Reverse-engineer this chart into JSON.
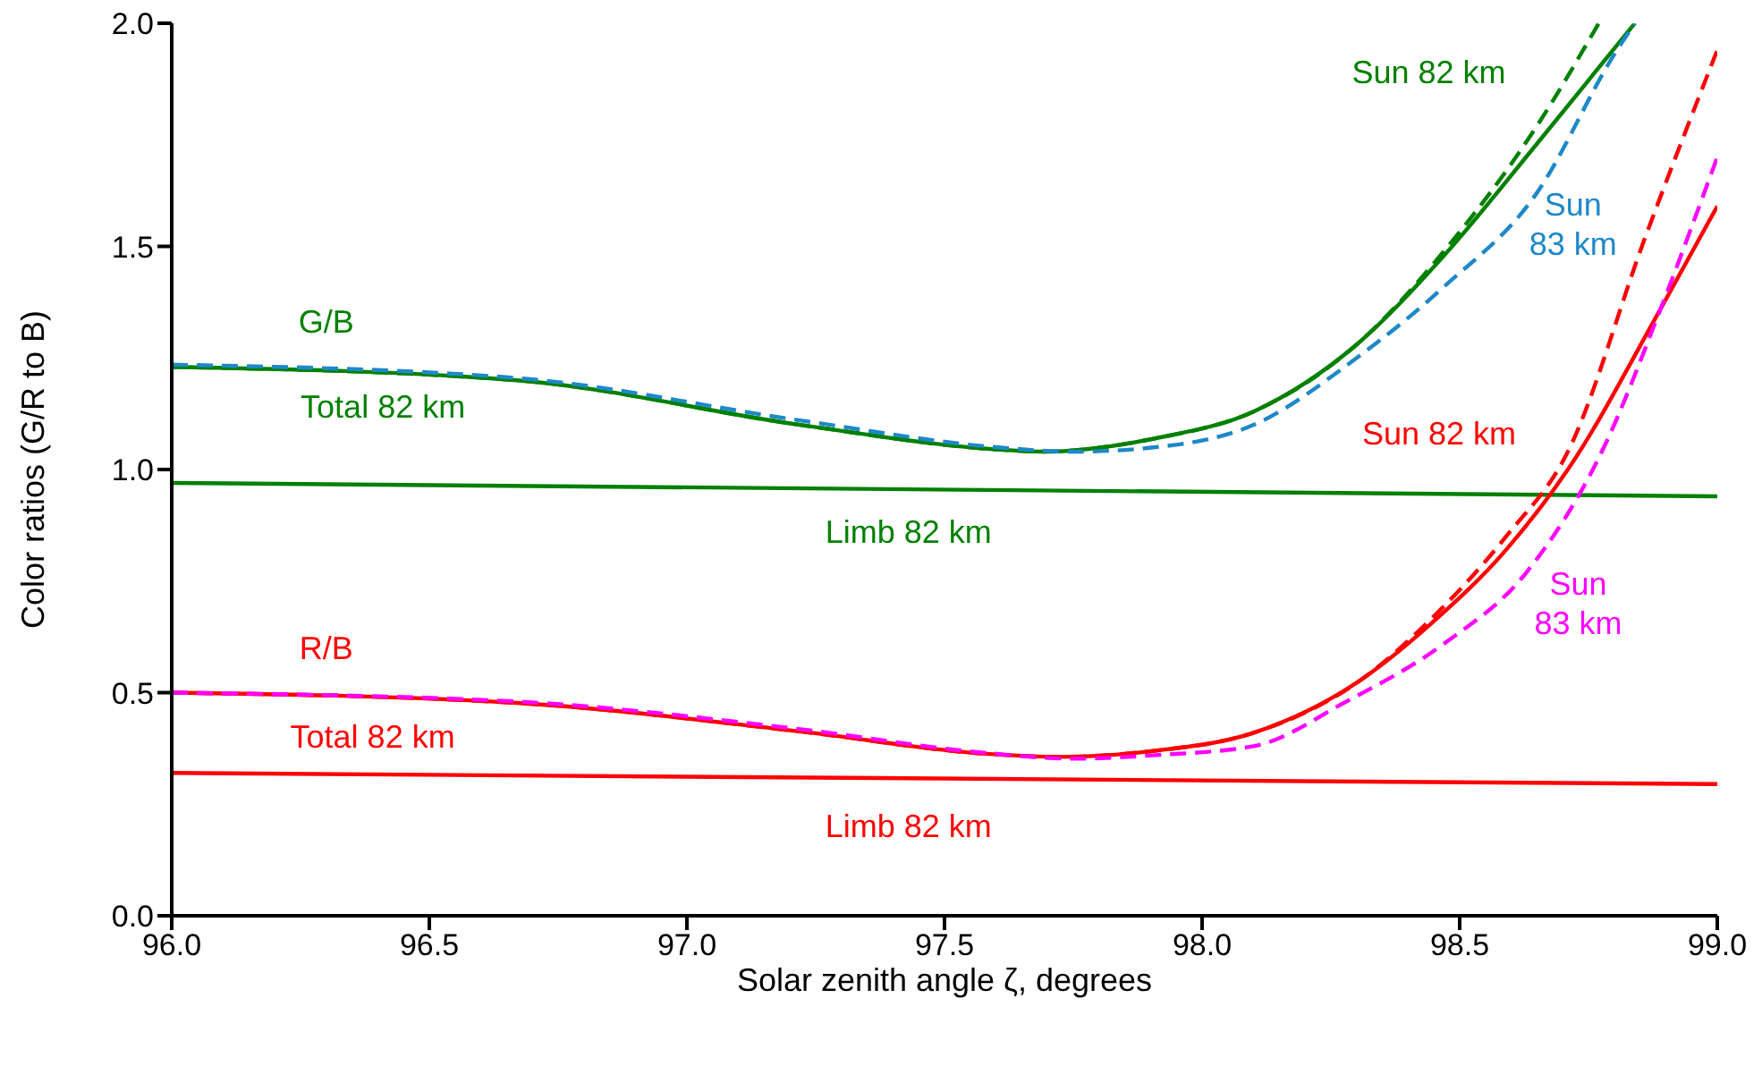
{
  "chart_data": {
    "type": "line",
    "xlabel": "Solar zenith angle ζ, degrees",
    "ylabel": "Color ratios (G/R to B)",
    "xlim": [
      96,
      99
    ],
    "xticks": [
      {
        "value": 96,
        "label": "96.0"
      },
      {
        "value": 96.5,
        "label": "96.5"
      },
      {
        "value": 97,
        "label": "97.0"
      },
      {
        "value": 97.5,
        "label": "97.5"
      },
      {
        "value": 98,
        "label": "98.0"
      },
      {
        "value": 98.5,
        "label": "98.5"
      },
      {
        "value": 99,
        "label": "99.0"
      }
    ],
    "ylim": [
      0,
      2
    ],
    "yticks": [
      {
        "value": 0,
        "label": "0.0"
      },
      {
        "value": 0.5,
        "label": "0.5"
      },
      {
        "value": 1,
        "label": "1.0"
      },
      {
        "value": 1.5,
        "label": "1.5"
      },
      {
        "value": 2,
        "label": "2.0"
      }
    ],
    "grid": false,
    "legend": false,
    "marker": "none",
    "series": [
      {
        "name": "Total 82 km",
        "color": "#008000",
        "line_style": "solid",
        "x": [
          96,
          96.67,
          97.22,
          97.6,
          97.69,
          97.91,
          98.1,
          98.3,
          98.47,
          98.65,
          98.84
        ],
        "values": [
          1.23,
          1.2,
          1.1,
          1.045,
          1.04,
          1.07,
          1.13,
          1.28,
          1.48,
          1.73,
          2.0
        ]
      },
      {
        "name": "Sun 82 km",
        "color": "#008000",
        "line_style": "dashed",
        "x": [
          96,
          96.67,
          97.22,
          97.6,
          97.69,
          97.91,
          98.1,
          98.3,
          98.47,
          98.65,
          98.77
        ],
        "values": [
          1.23,
          1.2,
          1.1,
          1.045,
          1.04,
          1.07,
          1.13,
          1.28,
          1.49,
          1.77,
          2.0
        ]
      },
      {
        "name": "Sun 83 km",
        "color": "#1e88c8",
        "line_style": "dashed",
        "x": [
          96,
          96.67,
          97.22,
          97.6,
          97.75,
          97.91,
          98.1,
          98.3,
          98.47,
          98.65,
          98.8,
          98.84
        ],
        "values": [
          1.235,
          1.205,
          1.11,
          1.05,
          1.04,
          1.05,
          1.1,
          1.25,
          1.41,
          1.62,
          1.93,
          2.0
        ]
      },
      {
        "name": "Limb 82 km",
        "color": "#008000",
        "line_style": "solid",
        "x": [
          96,
          99
        ],
        "values": [
          0.97,
          0.94
        ]
      },
      {
        "name": "Total 82 km",
        "color": "#ff0000",
        "line_style": "solid",
        "x": [
          96,
          96.67,
          97.22,
          97.58,
          97.72,
          97.91,
          98.1,
          98.31,
          98.44,
          98.59,
          98.71,
          98.89,
          99
        ],
        "values": [
          0.5,
          0.477,
          0.413,
          0.363,
          0.356,
          0.37,
          0.41,
          0.53,
          0.65,
          0.82,
          1.0,
          1.36,
          1.59
        ]
      },
      {
        "name": "Sun 82 km",
        "color": "#ff0000",
        "line_style": "dashed",
        "x": [
          96,
          96.67,
          97.22,
          97.58,
          97.72,
          97.91,
          98.1,
          98.31,
          98.44,
          98.59,
          98.71,
          98.86,
          99
        ],
        "values": [
          0.5,
          0.477,
          0.413,
          0.363,
          0.356,
          0.37,
          0.41,
          0.53,
          0.66,
          0.85,
          1.04,
          1.52,
          1.94
        ]
      },
      {
        "name": "Sun 83 km",
        "color": "#ff00ff",
        "line_style": "dashed",
        "x": [
          96,
          96.67,
          97.22,
          97.58,
          97.75,
          97.91,
          98.1,
          98.28,
          98.47,
          98.63,
          98.78,
          98.89,
          99
        ],
        "values": [
          0.5,
          0.48,
          0.418,
          0.365,
          0.352,
          0.36,
          0.38,
          0.48,
          0.61,
          0.77,
          1.05,
          1.36,
          1.7
        ]
      },
      {
        "name": "Limb 82 km",
        "color": "#ff0000",
        "line_style": "solid",
        "x": [
          96,
          99
        ],
        "values": [
          0.32,
          0.295
        ]
      }
    ],
    "annotations": [
      "G/B",
      "R/B"
    ]
  }
}
